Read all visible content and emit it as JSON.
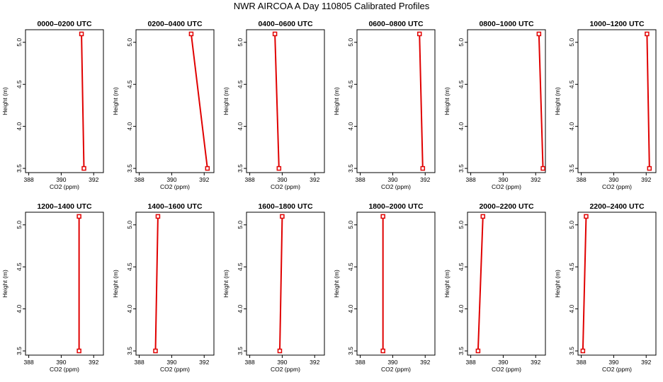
{
  "title": "NWR AIRCOA A  Day 110805  Calibrated Profiles",
  "colors": {
    "series": "#e00000",
    "axis": "#000000",
    "background": "#ffffff"
  },
  "chart_data": [
    {
      "type": "line",
      "title": "0000–0200 UTC",
      "xlabel": "CO2 (ppm)",
      "ylabel": "Height (m)",
      "xlim": [
        387.8,
        392.6
      ],
      "ylim": [
        3.45,
        5.15
      ],
      "xticks": [
        "388",
        "390",
        "392"
      ],
      "yticks": [
        "3.5",
        "4.0",
        "4.5",
        "5.0"
      ],
      "points": [
        {
          "x": 391.4,
          "y": 3.5
        },
        {
          "x": 391.25,
          "y": 5.1
        }
      ]
    },
    {
      "type": "line",
      "title": "0200–0400 UTC",
      "xlabel": "CO2 (ppm)",
      "ylabel": "Height (m)",
      "xlim": [
        387.8,
        392.6
      ],
      "ylim": [
        3.45,
        5.15
      ],
      "xticks": [
        "388",
        "390",
        "392"
      ],
      "yticks": [
        "3.5",
        "4.0",
        "4.5",
        "5.0"
      ],
      "points": [
        {
          "x": 392.2,
          "y": 3.5
        },
        {
          "x": 391.2,
          "y": 5.1
        }
      ]
    },
    {
      "type": "line",
      "title": "0400–0600 UTC",
      "xlabel": "CO2 (ppm)",
      "ylabel": "Height (m)",
      "xlim": [
        387.8,
        392.6
      ],
      "ylim": [
        3.45,
        5.15
      ],
      "xticks": [
        "388",
        "390",
        "392"
      ],
      "yticks": [
        "3.5",
        "4.0",
        "4.5",
        "5.0"
      ],
      "points": [
        {
          "x": 389.8,
          "y": 3.5
        },
        {
          "x": 389.55,
          "y": 5.1
        }
      ]
    },
    {
      "type": "line",
      "title": "0600–0800 UTC",
      "xlabel": "CO2 (ppm)",
      "ylabel": "Height (m)",
      "xlim": [
        387.8,
        392.6
      ],
      "ylim": [
        3.45,
        5.15
      ],
      "xticks": [
        "388",
        "390",
        "392"
      ],
      "yticks": [
        "3.5",
        "4.0",
        "4.5",
        "5.0"
      ],
      "points": [
        {
          "x": 391.85,
          "y": 3.5
        },
        {
          "x": 391.65,
          "y": 5.1
        }
      ]
    },
    {
      "type": "line",
      "title": "0800–1000 UTC",
      "xlabel": "CO2 (ppm)",
      "ylabel": "Height (m)",
      "xlim": [
        387.8,
        392.6
      ],
      "ylim": [
        3.45,
        5.15
      ],
      "xticks": [
        "388",
        "390",
        "392"
      ],
      "yticks": [
        "3.5",
        "4.0",
        "4.5",
        "5.0"
      ],
      "points": [
        {
          "x": 392.45,
          "y": 3.5
        },
        {
          "x": 392.2,
          "y": 5.1
        }
      ]
    },
    {
      "type": "line",
      "title": "1000–1200 UTC",
      "xlabel": "CO2 (ppm)",
      "ylabel": "Height (m)",
      "xlim": [
        387.8,
        392.6
      ],
      "ylim": [
        3.45,
        5.15
      ],
      "xticks": [
        "388",
        "390",
        "392"
      ],
      "yticks": [
        "3.5",
        "4.0",
        "4.5",
        "5.0"
      ],
      "points": [
        {
          "x": 392.2,
          "y": 3.5
        },
        {
          "x": 392.05,
          "y": 5.1
        }
      ]
    },
    {
      "type": "line",
      "title": "1200–1400 UTC",
      "xlabel": "CO2 (ppm)",
      "ylabel": "Height (m)",
      "xlim": [
        387.8,
        392.6
      ],
      "ylim": [
        3.45,
        5.15
      ],
      "xticks": [
        "388",
        "390",
        "392"
      ],
      "yticks": [
        "3.5",
        "4.0",
        "4.5",
        "5.0"
      ],
      "points": [
        {
          "x": 391.1,
          "y": 3.5
        },
        {
          "x": 391.1,
          "y": 5.1
        }
      ]
    },
    {
      "type": "line",
      "title": "1400–1600 UTC",
      "xlabel": "CO2 (ppm)",
      "ylabel": "Height (m)",
      "xlim": [
        387.8,
        392.6
      ],
      "ylim": [
        3.45,
        5.15
      ],
      "xticks": [
        "388",
        "390",
        "392"
      ],
      "yticks": [
        "3.5",
        "4.0",
        "4.5",
        "5.0"
      ],
      "points": [
        {
          "x": 389.0,
          "y": 3.5
        },
        {
          "x": 389.15,
          "y": 5.1
        }
      ]
    },
    {
      "type": "line",
      "title": "1600–1800 UTC",
      "xlabel": "CO2 (ppm)",
      "ylabel": "Height (m)",
      "xlim": [
        387.8,
        392.6
      ],
      "ylim": [
        3.45,
        5.15
      ],
      "xticks": [
        "388",
        "390",
        "392"
      ],
      "yticks": [
        "3.5",
        "4.0",
        "4.5",
        "5.0"
      ],
      "points": [
        {
          "x": 389.85,
          "y": 3.5
        },
        {
          "x": 390.0,
          "y": 5.1
        }
      ]
    },
    {
      "type": "line",
      "title": "1800–2000 UTC",
      "xlabel": "CO2 (ppm)",
      "ylabel": "Height (m)",
      "xlim": [
        387.8,
        392.6
      ],
      "ylim": [
        3.45,
        5.15
      ],
      "xticks": [
        "388",
        "390",
        "392"
      ],
      "yticks": [
        "3.5",
        "4.0",
        "4.5",
        "5.0"
      ],
      "points": [
        {
          "x": 389.4,
          "y": 3.5
        },
        {
          "x": 389.4,
          "y": 5.1
        }
      ]
    },
    {
      "type": "line",
      "title": "2000–2200 UTC",
      "xlabel": "CO2 (ppm)",
      "ylabel": "Height (m)",
      "xlim": [
        387.8,
        392.6
      ],
      "ylim": [
        3.45,
        5.15
      ],
      "xticks": [
        "388",
        "390",
        "392"
      ],
      "yticks": [
        "3.5",
        "4.0",
        "4.5",
        "5.0"
      ],
      "points": [
        {
          "x": 388.45,
          "y": 3.5
        },
        {
          "x": 388.75,
          "y": 5.1
        }
      ]
    },
    {
      "type": "line",
      "title": "2200–2400 UTC",
      "xlabel": "CO2 (ppm)",
      "ylabel": "Height (m)",
      "xlim": [
        387.8,
        392.6
      ],
      "ylim": [
        3.45,
        5.15
      ],
      "xticks": [
        "388",
        "390",
        "392"
      ],
      "yticks": [
        "3.5",
        "4.0",
        "4.5",
        "5.0"
      ],
      "points": [
        {
          "x": 388.1,
          "y": 3.5
        },
        {
          "x": 388.3,
          "y": 5.1
        }
      ]
    }
  ]
}
